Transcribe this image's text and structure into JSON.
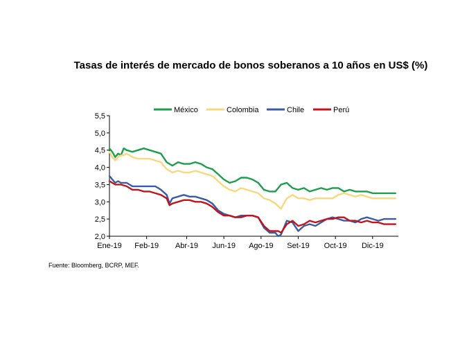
{
  "chart_data": {
    "type": "line",
    "title": "Tasas de interés de mercado de bonos soberanos a 10 años en US$ (%)",
    "source": "Fuente: Bloomberg, BCRP, MEF.",
    "xlabel": "",
    "ylabel": "",
    "ylim": [
      2.0,
      5.5
    ],
    "yticks": [
      "5,5",
      "5,0",
      "4,5",
      "4,0",
      "3,5",
      "3,0",
      "2,5",
      "2,0"
    ],
    "ytick_values": [
      5.5,
      5.0,
      4.5,
      4.0,
      3.5,
      3.0,
      2.5,
      2.0
    ],
    "xticks": [
      "Ene-19",
      "Feb-19",
      "Abr-19",
      "Jun-19",
      "Ago-19",
      "Set-19",
      "Oct-19",
      "Dic-19"
    ],
    "xtick_positions": [
      0,
      1.3,
      2.7,
      4.0,
      5.3,
      6.6,
      7.9,
      9.2
    ],
    "xlim": [
      0,
      10.1
    ],
    "legend_position": "top",
    "series": [
      {
        "name": "México",
        "color": "#1a9e4a",
        "x": [
          0,
          0.1,
          0.2,
          0.3,
          0.4,
          0.5,
          0.6,
          0.8,
          1.0,
          1.2,
          1.4,
          1.6,
          1.8,
          2.0,
          2.2,
          2.4,
          2.6,
          2.8,
          3.0,
          3.2,
          3.4,
          3.6,
          3.8,
          4.0,
          4.2,
          4.4,
          4.6,
          4.8,
          5.0,
          5.2,
          5.4,
          5.6,
          5.8,
          6.0,
          6.2,
          6.4,
          6.6,
          6.8,
          7.0,
          7.2,
          7.4,
          7.6,
          7.8,
          8.0,
          8.2,
          8.4,
          8.6,
          8.8,
          9.0,
          9.2,
          9.4,
          9.6,
          9.8,
          10.0
        ],
        "values": [
          4.55,
          4.45,
          4.3,
          4.4,
          4.35,
          4.55,
          4.5,
          4.45,
          4.5,
          4.55,
          4.5,
          4.45,
          4.4,
          4.15,
          4.05,
          4.15,
          4.1,
          4.1,
          4.15,
          4.1,
          4.0,
          3.95,
          3.8,
          3.65,
          3.55,
          3.6,
          3.7,
          3.7,
          3.65,
          3.55,
          3.35,
          3.3,
          3.3,
          3.5,
          3.55,
          3.4,
          3.35,
          3.4,
          3.3,
          3.35,
          3.4,
          3.35,
          3.4,
          3.4,
          3.3,
          3.35,
          3.3,
          3.3,
          3.3,
          3.25,
          3.25,
          3.25,
          3.25,
          3.25
        ]
      },
      {
        "name": "Colombia",
        "color": "#f7d87a",
        "x": [
          0,
          0.1,
          0.2,
          0.3,
          0.4,
          0.5,
          0.6,
          0.8,
          1.0,
          1.2,
          1.4,
          1.6,
          1.8,
          2.0,
          2.2,
          2.4,
          2.6,
          2.8,
          3.0,
          3.2,
          3.4,
          3.6,
          3.8,
          4.0,
          4.2,
          4.4,
          4.6,
          4.8,
          5.0,
          5.2,
          5.4,
          5.6,
          5.8,
          6.0,
          6.2,
          6.4,
          6.6,
          6.8,
          7.0,
          7.2,
          7.4,
          7.6,
          7.8,
          8.0,
          8.2,
          8.4,
          8.6,
          8.8,
          9.0,
          9.2,
          9.4,
          9.6,
          9.8,
          10.0
        ],
        "values": [
          4.45,
          4.3,
          4.2,
          4.3,
          4.35,
          4.35,
          4.4,
          4.3,
          4.25,
          4.25,
          4.25,
          4.2,
          4.15,
          3.95,
          3.85,
          3.9,
          3.85,
          3.85,
          3.9,
          3.85,
          3.8,
          3.75,
          3.6,
          3.45,
          3.35,
          3.3,
          3.4,
          3.35,
          3.3,
          3.25,
          3.1,
          3.05,
          2.95,
          2.8,
          3.1,
          3.2,
          3.1,
          3.1,
          3.05,
          3.1,
          3.1,
          3.1,
          3.1,
          3.2,
          3.25,
          3.2,
          3.15,
          3.2,
          3.15,
          3.1,
          3.1,
          3.1,
          3.1,
          3.1
        ]
      },
      {
        "name": "Chile",
        "color": "#3a5aa6",
        "x": [
          0,
          0.1,
          0.2,
          0.3,
          0.4,
          0.6,
          0.8,
          1.0,
          1.2,
          1.4,
          1.6,
          1.8,
          2.0,
          2.1,
          2.2,
          2.4,
          2.6,
          2.8,
          3.0,
          3.2,
          3.4,
          3.6,
          3.8,
          4.0,
          4.2,
          4.4,
          4.6,
          4.8,
          5.0,
          5.2,
          5.4,
          5.6,
          5.8,
          5.9,
          6.0,
          6.2,
          6.4,
          6.6,
          6.8,
          7.0,
          7.2,
          7.4,
          7.6,
          7.8,
          8.0,
          8.2,
          8.4,
          8.6,
          8.8,
          9.0,
          9.2,
          9.4,
          9.6,
          9.8,
          10.0
        ],
        "values": [
          3.75,
          3.65,
          3.55,
          3.6,
          3.55,
          3.55,
          3.45,
          3.45,
          3.45,
          3.45,
          3.45,
          3.35,
          3.2,
          2.95,
          3.1,
          3.15,
          3.2,
          3.15,
          3.15,
          3.1,
          3.05,
          2.95,
          2.75,
          2.65,
          2.6,
          2.55,
          2.6,
          2.6,
          2.6,
          2.55,
          2.25,
          2.1,
          2.1,
          2.0,
          2.05,
          2.45,
          2.4,
          2.15,
          2.3,
          2.35,
          2.3,
          2.4,
          2.5,
          2.55,
          2.5,
          2.45,
          2.45,
          2.4,
          2.5,
          2.55,
          2.5,
          2.45,
          2.5,
          2.5,
          2.5
        ]
      },
      {
        "name": "Perú",
        "color": "#c0141c",
        "x": [
          0,
          0.1,
          0.2,
          0.3,
          0.4,
          0.6,
          0.8,
          1.0,
          1.2,
          1.4,
          1.6,
          1.8,
          2.0,
          2.1,
          2.2,
          2.4,
          2.6,
          2.8,
          3.0,
          3.2,
          3.4,
          3.6,
          3.8,
          4.0,
          4.2,
          4.4,
          4.6,
          4.8,
          5.0,
          5.2,
          5.4,
          5.6,
          5.8,
          5.9,
          6.0,
          6.2,
          6.4,
          6.6,
          6.8,
          7.0,
          7.2,
          7.4,
          7.6,
          7.8,
          8.0,
          8.2,
          8.4,
          8.6,
          8.8,
          9.0,
          9.2,
          9.4,
          9.6,
          9.8,
          10.0
        ],
        "values": [
          3.6,
          3.55,
          3.5,
          3.5,
          3.5,
          3.45,
          3.35,
          3.35,
          3.3,
          3.3,
          3.25,
          3.2,
          3.1,
          2.9,
          2.95,
          3.0,
          3.05,
          3.05,
          3.0,
          3.0,
          2.95,
          2.85,
          2.7,
          2.6,
          2.6,
          2.55,
          2.55,
          2.6,
          2.6,
          2.55,
          2.3,
          2.15,
          2.15,
          2.15,
          2.1,
          2.35,
          2.45,
          2.3,
          2.35,
          2.45,
          2.4,
          2.45,
          2.5,
          2.5,
          2.55,
          2.55,
          2.45,
          2.45,
          2.4,
          2.45,
          2.4,
          2.4,
          2.35,
          2.35,
          2.35
        ]
      }
    ]
  }
}
